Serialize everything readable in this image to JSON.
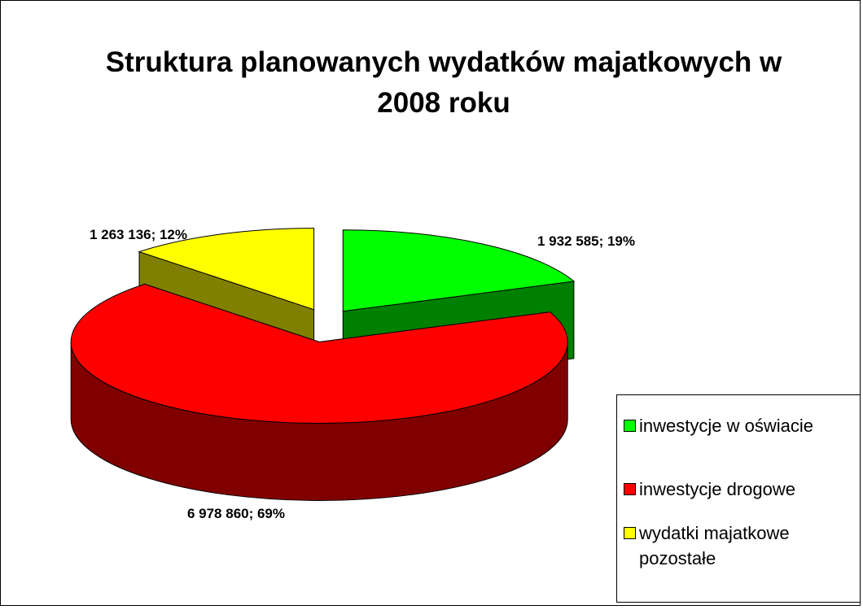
{
  "chart_data": {
    "type": "pie",
    "title": "Struktura planowanych wydatków majatkowych w 2008 roku",
    "categories": [
      "inwestycje w oświacie",
      "inwestycje drogowe",
      "wydatki majatkowe pozostałe"
    ],
    "values": [
      1932585,
      6978860,
      1263136
    ],
    "value_labels": [
      "1 932 585; 19%",
      "6 978 860; 69%",
      "1 263 136; 12%"
    ],
    "colors": [
      "#00ff00",
      "#ff0000",
      "#ffff00"
    ],
    "legend": "right"
  }
}
